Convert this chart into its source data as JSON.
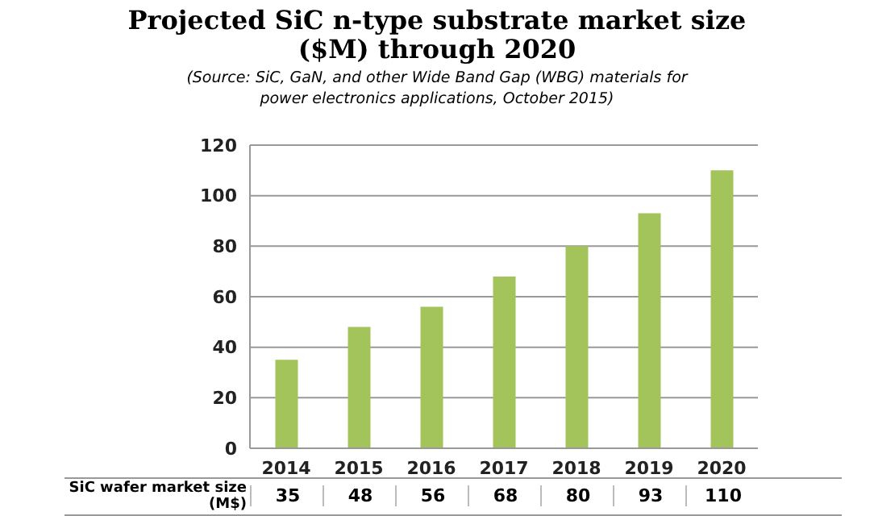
{
  "chart_data": {
    "type": "bar",
    "title": "Projected SiC n-type substrate market size ($M) through 2020",
    "subtitle": "(Source: SiC, GaN, and other Wide Band Gap (WBG) materials for power electronics applications, October 2015)",
    "categories": [
      "2014",
      "2015",
      "2016",
      "2017",
      "2018",
      "2019",
      "2020"
    ],
    "values": [
      35,
      48,
      56,
      68,
      80,
      93,
      110
    ],
    "color": "#a3c45a",
    "ylim": [
      0,
      120
    ],
    "yticks": [
      0,
      20,
      40,
      60,
      80,
      100,
      120
    ],
    "grid": "y",
    "data_labels": true,
    "annotations": [
      "SiC wafer market size (M$)"
    ]
  }
}
